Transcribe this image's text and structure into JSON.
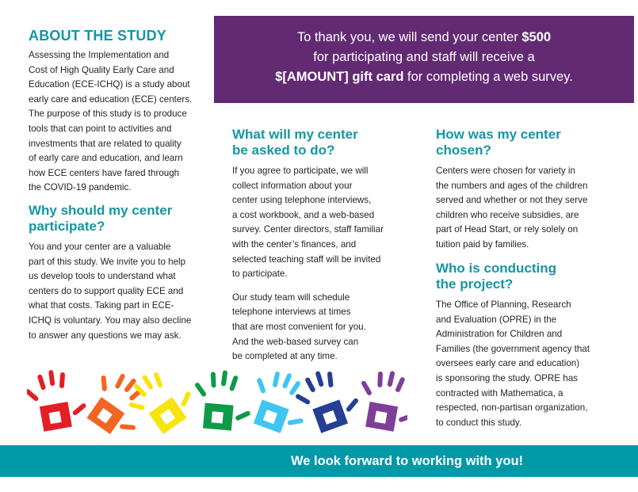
{
  "colors": {
    "accent": "#1596a3",
    "purple": "#622a73",
    "banner": "#0099a8",
    "hands": [
      "#e31f26",
      "#f26522",
      "#f7e40f",
      "#0f9a48",
      "#3ec6f0",
      "#253f93",
      "#7d3f98"
    ]
  },
  "about": {
    "title": "ABOUT THE STUDY",
    "lines": [
      "Assessing the Implementation and",
      "Cost of High Quality Early Care and",
      "Education (ECE-ICHQ) is a study about",
      "early care and education (ECE) centers.",
      "The purpose of this study is to produce",
      "tools that can point to activities and",
      "investments that are related to quality",
      "of early care and education, and learn",
      "how ECE centers have fared through",
      "the COVID-19 pandemic."
    ]
  },
  "why": {
    "title_lines": [
      "Why should my center",
      "participate?"
    ],
    "lines": [
      "You and your center are a valuable",
      "part of this study. We invite you to help",
      "us develop tools to understand what",
      "centers do to support quality ECE and",
      "what that costs. Taking part in ECE-",
      "ICHQ is voluntary. You may also decline",
      "to answer any questions we may ask."
    ]
  },
  "thanks": {
    "line1_pre": "To thank you, we will send your center ",
    "line1_bold": "$500",
    "line2": "for participating and staff will receive a",
    "line3_bold": "$[AMOUNT] gift card",
    "line3_post": " for completing a web survey."
  },
  "asked": {
    "title_lines": [
      "What will my center",
      "be asked to do?"
    ],
    "p1": [
      "If you agree to participate, we will",
      "collect information about your",
      "center using telephone interviews,",
      "a cost workbook, and a web-based",
      "survey. Center directors, staff familiar",
      "with the center’s finances, and",
      "selected teaching staff will be invited",
      "to participate."
    ],
    "p2": [
      "Our study team will schedule",
      "telephone interviews at times",
      "that are most convenient for you.",
      "And the web-based survey can",
      "be completed at any time."
    ]
  },
  "chosen": {
    "title_lines": [
      "How was my center",
      "chosen?"
    ],
    "lines": [
      "Centers were chosen for variety in",
      "the numbers and ages of the children",
      "served and whether or not they serve",
      "children who receive subsidies, are",
      "part of Head Start, or rely solely on",
      "tuition paid by families."
    ]
  },
  "who": {
    "title_lines": [
      "Who is conducting",
      "the project?"
    ],
    "lines": [
      "The Office of Planning, Research",
      "and Evaluation (OPRE) in the",
      "Administration for Children and",
      "Families (the government agency that",
      "oversees early care and education)",
      "is sponsoring the study. OPRE has",
      "contracted with Mathematica, a",
      "respected, non-partisan organization,",
      "to conduct this study."
    ]
  },
  "banner": {
    "text": "We look forward to working with you!"
  }
}
